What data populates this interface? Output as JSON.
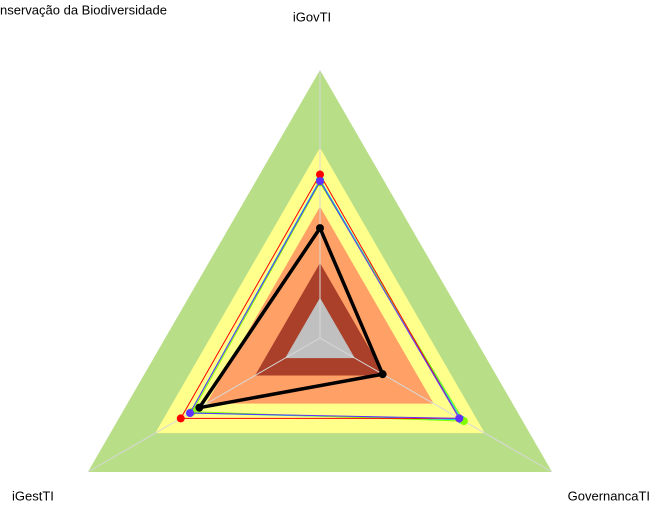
{
  "chart_data": {
    "type": "radar",
    "title": "nservação da Biodiversidade",
    "categories": [
      "iGovTI",
      "GovernancaTI",
      "iGestTI"
    ],
    "rlim": [
      0,
      1
    ],
    "bands": [
      {
        "color": "#b8de88",
        "value": 1.0
      },
      {
        "color": "#ffff8c",
        "value": 0.71
      },
      {
        "color": "#ffa066",
        "value": 0.49
      },
      {
        "color": "#aa3f2a",
        "value": 0.28
      },
      {
        "color": "#c0c0c0",
        "value": 0.15
      }
    ],
    "series": [
      {
        "color": "#00d8d8",
        "values": [
          0.59,
          0.61,
          0.56
        ]
      },
      {
        "color": "#7fff00",
        "values": [
          0.58,
          0.62,
          0.55
        ]
      },
      {
        "color": "#ff0000",
        "values": [
          0.61,
          0.6,
          0.6
        ]
      },
      {
        "color": "#6030ff",
        "values": [
          0.585,
          0.6,
          0.56
        ]
      },
      {
        "color": "#000000",
        "values": [
          0.41,
          0.27,
          0.52
        ]
      }
    ]
  }
}
